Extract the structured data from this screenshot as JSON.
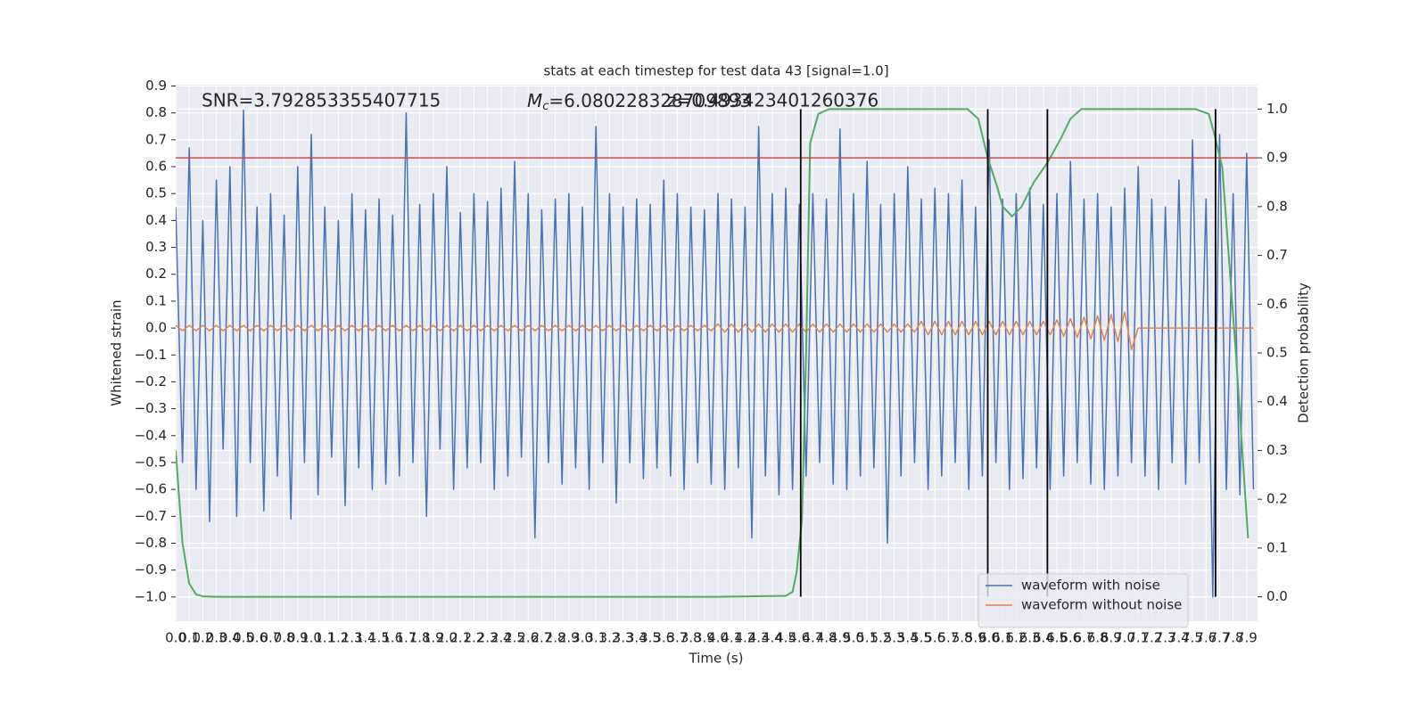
{
  "chart_data": {
    "type": "line",
    "title": "stats at each timestep for test data 43 [signal=1.0]",
    "xlabel": "Time (s)",
    "ylabel": "Whitened strain",
    "y2label": "Detection probability",
    "annotations": [
      {
        "text": "SNR=3.792853355407715"
      },
      {
        "symbol": "M",
        "subscript": "c",
        "text": "=6.080228328709893"
      },
      {
        "text": "z=0.493423401260376"
      }
    ],
    "grid": true,
    "legend": "lower right",
    "xlim": [
      0,
      7.98
    ],
    "ylim": [
      -1.09,
      0.905
    ],
    "y2lim": [
      -0.05,
      1.05
    ],
    "xticks": [
      {
        "value": 0,
        "label": "0.0"
      },
      0.1,
      0.2,
      0.3,
      0.4,
      0.5,
      0.6,
      0.7,
      0.8,
      0.9,
      {
        "value": 1,
        "label": "1.0"
      },
      1.1,
      1.2,
      1.3,
      1.4,
      1.5,
      1.6,
      1.7,
      1.8,
      1.9,
      {
        "value": 2,
        "label": "2.0"
      },
      2.1,
      2.2,
      2.3,
      2.4,
      2.5,
      2.6,
      2.7,
      2.8,
      2.9,
      {
        "value": 3,
        "label": "3.0"
      },
      3.1,
      3.2,
      3.3,
      3.4,
      3.5,
      3.6,
      3.7,
      3.8,
      3.9,
      {
        "value": 4,
        "label": "4.0"
      },
      4.1,
      4.2,
      4.3,
      4.4,
      4.5,
      4.6,
      4.7,
      4.8,
      4.9,
      {
        "value": 5,
        "label": "5.0"
      },
      5.1,
      5.2,
      5.3,
      5.4,
      5.5,
      5.6,
      5.7,
      5.8,
      5.9,
      {
        "value": 6,
        "label": "6.0"
      },
      6.1,
      6.2,
      6.3,
      6.4,
      6.5,
      6.6,
      6.7,
      6.8,
      6.9,
      {
        "value": 7,
        "label": "7.0"
      },
      7.1,
      7.2,
      7.3,
      7.4,
      7.5,
      7.6,
      7.7,
      7.8,
      7.9
    ],
    "yticks": [
      {
        "value": -1,
        "label": "−1.0"
      },
      {
        "value": -0.9,
        "label": "−0.9"
      },
      {
        "value": -0.8,
        "label": "−0.8"
      },
      {
        "value": -0.7,
        "label": "−0.7"
      },
      {
        "value": -0.6,
        "label": "−0.6"
      },
      {
        "value": -0.5,
        "label": "−0.5"
      },
      {
        "value": -0.4,
        "label": "−0.4"
      },
      {
        "value": -0.3,
        "label": "−0.3"
      },
      {
        "value": -0.2,
        "label": "−0.2"
      },
      {
        "value": -0.1,
        "label": "−0.1"
      },
      {
        "value": 0,
        "label": "0.0"
      },
      0.1,
      0.2,
      0.3,
      0.4,
      0.5,
      0.6,
      0.7,
      0.8,
      0.9
    ],
    "y2ticks": [
      {
        "value": 0,
        "label": "0.0"
      },
      0.1,
      0.2,
      0.3,
      0.4,
      0.5,
      0.6,
      0.7,
      0.8,
      0.9,
      {
        "value": 1,
        "label": "1.0"
      }
    ],
    "x": [
      0,
      0.05,
      0.1,
      0.15,
      0.2,
      0.25,
      0.3,
      0.35,
      0.4,
      0.45,
      0.5,
      0.55,
      0.6,
      0.65,
      0.7,
      0.75,
      0.8,
      0.85,
      0.9,
      0.95,
      1,
      1.05,
      1.1,
      1.15,
      1.2,
      1.25,
      1.3,
      1.35,
      1.4,
      1.45,
      1.5,
      1.55,
      1.6,
      1.65,
      1.7,
      1.75,
      1.8,
      1.85,
      1.9,
      1.95,
      2,
      2.05,
      2.1,
      2.15,
      2.2,
      2.25,
      2.3,
      2.35,
      2.4,
      2.45,
      2.5,
      2.55,
      2.6,
      2.65,
      2.7,
      2.75,
      2.8,
      2.85,
      2.9,
      2.95,
      3,
      3.05,
      3.1,
      3.15,
      3.2,
      3.25,
      3.3,
      3.35,
      3.4,
      3.45,
      3.5,
      3.55,
      3.6,
      3.65,
      3.7,
      3.75,
      3.8,
      3.85,
      3.9,
      3.95,
      4,
      4.05,
      4.1,
      4.15,
      4.2,
      4.25,
      4.3,
      4.35,
      4.4,
      4.45,
      4.5,
      4.55,
      4.6,
      4.65,
      4.7,
      4.75,
      4.8,
      4.85,
      4.9,
      4.95,
      5,
      5.05,
      5.1,
      5.15,
      5.2,
      5.25,
      5.3,
      5.35,
      5.4,
      5.45,
      5.5,
      5.55,
      5.6,
      5.65,
      5.7,
      5.75,
      5.8,
      5.85,
      5.9,
      5.95,
      6,
      6.05,
      6.1,
      6.15,
      6.2,
      6.25,
      6.3,
      6.35,
      6.4,
      6.45,
      6.5,
      6.55,
      6.6,
      6.65,
      6.7,
      6.75,
      6.8,
      6.85,
      6.9,
      6.95,
      7,
      7.05,
      7.1,
      7.15,
      7.2,
      7.25,
      7.3,
      7.35,
      7.4,
      7.45,
      7.5,
      7.55,
      7.6,
      7.65,
      7.7,
      7.75,
      7.8,
      7.85,
      7.9,
      7.95
    ],
    "series": [
      {
        "name": "waveform with noise",
        "color": "#4c72b0",
        "values": [
          0.45,
          -0.5,
          0.67,
          -0.6,
          0.4,
          -0.72,
          0.55,
          -0.45,
          0.6,
          -0.7,
          0.81,
          -0.5,
          0.45,
          -0.68,
          0.5,
          -0.55,
          0.42,
          -0.71,
          0.6,
          -0.5,
          0.72,
          -0.62,
          0.45,
          -0.48,
          0.4,
          -0.66,
          0.5,
          -0.52,
          0.44,
          -0.6,
          0.48,
          -0.58,
          0.42,
          -0.55,
          0.8,
          -0.5,
          0.46,
          -0.7,
          0.5,
          -0.45,
          0.6,
          -0.6,
          0.43,
          -0.52,
          0.5,
          -0.5,
          0.47,
          -0.6,
          0.52,
          -0.55,
          0.62,
          -0.48,
          0.5,
          -0.78,
          0.44,
          -0.5,
          0.48,
          -0.58,
          0.5,
          -0.52,
          0.45,
          -0.6,
          0.75,
          -0.5,
          0.5,
          -0.65,
          0.45,
          -0.5,
          0.48,
          -0.56,
          0.46,
          -0.52,
          0.55,
          -0.55,
          0.5,
          -0.6,
          0.45,
          -0.5,
          0.44,
          -0.58,
          0.5,
          -0.6,
          0.48,
          -0.52,
          0.45,
          -0.78,
          0.75,
          -0.55,
          0.5,
          -0.62,
          0.52,
          -0.6,
          0.46,
          -0.55,
          0.5,
          -0.5,
          0.48,
          -0.58,
          0.74,
          -0.6,
          0.5,
          -0.55,
          0.62,
          -0.52,
          0.46,
          -0.8,
          0.5,
          -0.55,
          0.6,
          -0.5,
          0.48,
          -0.6,
          0.52,
          -0.55,
          0.5,
          -0.5,
          0.55,
          -0.6,
          0.45,
          -0.55,
          0.7,
          -0.5,
          0.48,
          -0.6,
          0.5,
          -0.56,
          0.52,
          -0.52,
          0.46,
          -0.6,
          0.5,
          -0.55,
          0.62,
          -0.5,
          0.48,
          -0.58,
          0.5,
          -0.6,
          0.45,
          -0.55,
          0.52,
          -0.5,
          0.6,
          -0.55,
          0.48,
          -0.6,
          0.45,
          -0.5,
          0.55,
          -0.58,
          0.7,
          -0.5,
          0.48,
          -1.0,
          0.72,
          -0.6,
          0.5,
          -0.62,
          0.65,
          -0.6
        ]
      },
      {
        "name": "waveform without noise",
        "color": "#dd8452",
        "values": [
          0.01,
          -0.01,
          0.01,
          -0.01,
          0.01,
          -0.01,
          0.01,
          -0.01,
          0.01,
          -0.01,
          0.01,
          -0.01,
          0.01,
          -0.01,
          0.01,
          -0.01,
          0.01,
          -0.01,
          0.01,
          -0.01,
          0.01,
          -0.01,
          0.01,
          -0.01,
          0.01,
          -0.01,
          0.01,
          -0.01,
          0.01,
          -0.01,
          0.01,
          -0.01,
          0.01,
          -0.01,
          0.01,
          -0.01,
          0.01,
          -0.01,
          0.01,
          -0.01,
          0.01,
          -0.01,
          0.01,
          -0.01,
          0.01,
          -0.01,
          0.01,
          -0.01,
          0.01,
          -0.01,
          0.01,
          -0.01,
          0.01,
          -0.01,
          0.01,
          -0.01,
          0.01,
          -0.01,
          0.01,
          -0.01,
          0.01,
          -0.01,
          0.01,
          -0.01,
          0.01,
          -0.01,
          0.01,
          -0.01,
          0.01,
          -0.01,
          0.01,
          -0.01,
          0.01,
          -0.01,
          0.01,
          -0.01,
          0.01,
          -0.01,
          0.01,
          -0.01,
          0.015,
          -0.015,
          0.015,
          -0.015,
          0.015,
          -0.015,
          0.015,
          -0.015,
          0.015,
          -0.015,
          0.015,
          -0.015,
          0.015,
          -0.015,
          0.015,
          -0.015,
          0.015,
          -0.015,
          0.015,
          -0.015,
          0.015,
          -0.015,
          0.015,
          -0.015,
          0.015,
          -0.015,
          0.015,
          -0.015,
          0.015,
          -0.015,
          0.025,
          -0.025,
          0.025,
          -0.025,
          0.025,
          -0.025,
          0.025,
          -0.025,
          0.025,
          -0.025,
          0.025,
          -0.025,
          0.025,
          -0.025,
          0.025,
          -0.025,
          0.025,
          -0.025,
          0.025,
          -0.025,
          0.03,
          -0.03,
          0.035,
          -0.035,
          0.04,
          -0.04,
          0.045,
          -0.045,
          0.05,
          -0.05,
          0.06,
          -0.08,
          0,
          0,
          0,
          0,
          0,
          0,
          0,
          0,
          0,
          0,
          0,
          0,
          0,
          0,
          0,
          0,
          0,
          0
        ]
      },
      {
        "color": "#55a868",
        "axis": "y2",
        "x": [
          0,
          0.05,
          0.1,
          0.15,
          0.2,
          0.3,
          1,
          2,
          3,
          4,
          4.5,
          4.55,
          4.58,
          4.62,
          4.65,
          4.68,
          4.74,
          4.82,
          5,
          5.5,
          5.84,
          5.92,
          5.99,
          6.06,
          6.1,
          6.17,
          6.24,
          6.33,
          6.43,
          6.53,
          6.6,
          6.68,
          7,
          7.52,
          7.62,
          7.66,
          7.72,
          7.82,
          7.91
        ],
        "values": [
          0.3,
          0.11,
          0.027,
          0.005,
          0.001,
          0,
          0,
          0,
          0,
          0,
          0.002,
          0.01,
          0.05,
          0.16,
          0.5,
          0.93,
          0.99,
          1,
          1,
          1,
          1,
          0.98,
          0.9,
          0.84,
          0.8,
          0.78,
          0.8,
          0.85,
          0.89,
          0.94,
          0.98,
          1,
          1,
          1,
          0.99,
          0.95,
          0.88,
          0.5,
          0.12
        ]
      }
    ],
    "threshold": {
      "value": 0.9,
      "axis": "y2",
      "color": "#c44e52"
    },
    "vlines": {
      "x": [
        4.61,
        5.99,
        6.43,
        7.67
      ],
      "span": [
        0,
        1
      ],
      "axis": "y2",
      "color": "#000000"
    }
  }
}
